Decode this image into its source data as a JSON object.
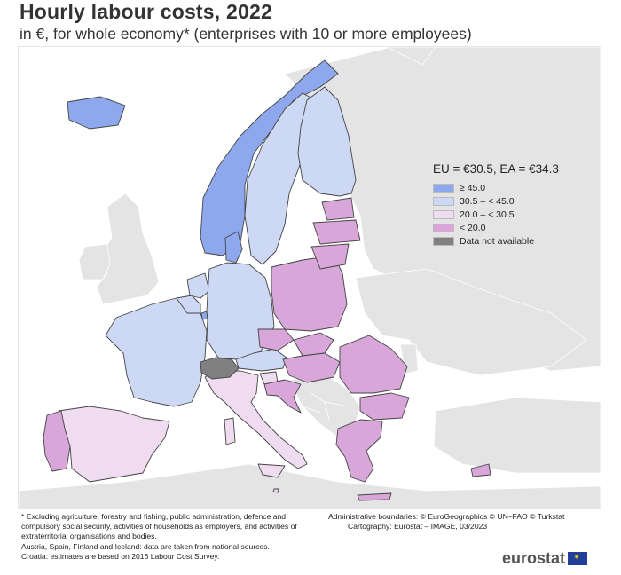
{
  "title": "Hourly labour costs, 2022",
  "subtitle": "in €, for whole economy* (enterprises with 10 or more employees)",
  "legend": {
    "title": "EU = €30.5, EA = €34.3",
    "items": [
      {
        "label": "≥ 45.0",
        "color": "#8ea8ee"
      },
      {
        "label": "30.5 – < 45.0",
        "color": "#cdd8f4"
      },
      {
        "label": "20.0 – < 30.5",
        "color": "#f0dcf0"
      },
      {
        "label": "< 20.0",
        "color": "#d8a6d8"
      },
      {
        "label": "Data not available",
        "color": "#808080"
      }
    ]
  },
  "map_colors": {
    "sea": "#ffffff",
    "non_eu_land": "#e4e4e4",
    "border": "#444444",
    "ge45": "#8ea8ee",
    "c30_45": "#cdd8f4",
    "c20_30": "#f0dcf0",
    "lt20": "#d8a6d8",
    "na": "#808080"
  },
  "notes": [
    "* Excluding agriculture, forestry and fishing, public administration, defence and compulsory social security, activities of households as employers, and activities of extraterritorial organisations and bodies.",
    "Austria, Spain, Finland and Iceland: data are taken from national sources.",
    "Croatia: estimates are based on 2016 Labour Cost Survey."
  ],
  "credits": {
    "line1": "Administrative boundaries: © EuroGeographics © UN–FAO © Turkstat",
    "line2": "Cartography: Eurostat – IMAGE, 03/2023"
  },
  "logo": "eurostat"
}
